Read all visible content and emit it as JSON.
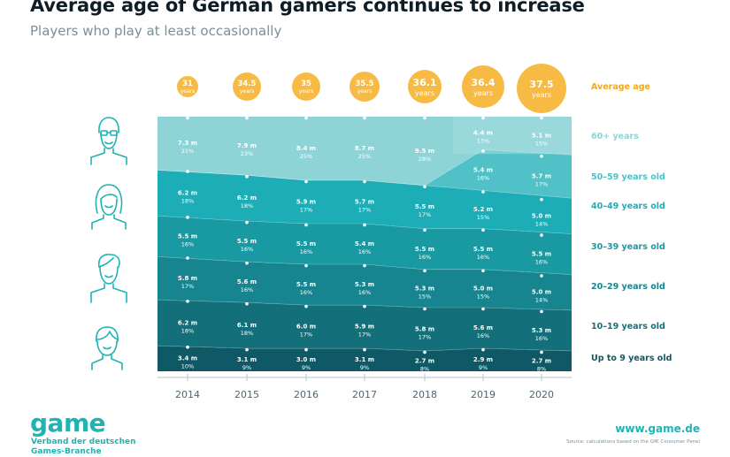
{
  "header": {
    "title": "Average age of German gamers continues to increase",
    "subtitle": "Players who play at least occasionally"
  },
  "footer": {
    "logo_text": "game",
    "logo_subtitle": "Verband der deutschen Games-Branche",
    "website": "www.game.de",
    "source": "Source: calculations based on the GfK Consumer Panel"
  },
  "icons": [
    {
      "name": "senior-person-icon",
      "group": "60+"
    },
    {
      "name": "woman-person-icon",
      "group": "40-59"
    },
    {
      "name": "man-person-icon",
      "group": "20-39"
    },
    {
      "name": "child-person-icon",
      "group": "under 20"
    }
  ],
  "colors": {
    "bubble": "#f7bb45",
    "accent": "#1fb3b3",
    "avg_label": "#f2a81e",
    "bands": [
      "#0f5865",
      "#13707b",
      "#16858f",
      "#199aa3",
      "#1cadb6",
      "#4fc1c7",
      "#8ed4d7"
    ],
    "labels": [
      "#0f5865",
      "#13707b",
      "#16858f",
      "#199aa3",
      "#1cadb6",
      "#4fc1c7",
      "#8ed4d7"
    ]
  },
  "chart_data": {
    "type": "area",
    "title": "Average age of German gamers continues to increase",
    "subtitle": "Players who play at least occasionally",
    "years": [
      "2014",
      "2015",
      "2016",
      "2017",
      "2018",
      "2019",
      "2020"
    ],
    "average_age": {
      "label": "Average age",
      "values": [
        "31",
        "34.5",
        "35",
        "35.5",
        "36.1",
        "36.4",
        "37.5"
      ],
      "unit": "years"
    },
    "series": [
      {
        "name": "Up to 9 years old",
        "millions": [
          "3.4",
          "3.1",
          "3.0",
          "3.1",
          "2.7",
          "2.9",
          "2.7"
        ],
        "shares": [
          "10",
          "9",
          "9",
          "9",
          "8",
          "9",
          "8"
        ]
      },
      {
        "name": "10–19 years old",
        "millions": [
          "6.2",
          "6.1",
          "6.0",
          "5.9",
          "5.8",
          "5.6",
          "5.3"
        ],
        "shares": [
          "18",
          "18",
          "17",
          "17",
          "17",
          "16",
          "16"
        ]
      },
      {
        "name": "20–29 years old",
        "millions": [
          "5.8",
          "5.6",
          "5.5",
          "5.3",
          "5.3",
          "5.0",
          "5.0"
        ],
        "shares": [
          "17",
          "16",
          "16",
          "16",
          "15",
          "15",
          "14"
        ]
      },
      {
        "name": "30–39 years old",
        "millions": [
          "5.5",
          "5.5",
          "5.5",
          "5.4",
          "5.5",
          "5.5",
          "5.5"
        ],
        "shares": [
          "16",
          "16",
          "16",
          "16",
          "16",
          "16",
          "16"
        ]
      },
      {
        "name": "40–49 years old",
        "millions": [
          "6.2",
          "6.2",
          "5.9",
          "5.7",
          "5.5",
          "5.2",
          "5.0"
        ],
        "shares": [
          "18",
          "18",
          "17",
          "17",
          "17",
          "15",
          "14"
        ]
      },
      {
        "name": "50–59 years old",
        "millions": [
          "",
          "",
          "",
          "",
          "",
          "5.4",
          "5.7"
        ],
        "shares": [
          "",
          "",
          "",
          "",
          "",
          "16",
          "17"
        ]
      },
      {
        "name": "60+ years",
        "millions": [
          "7.3",
          "7.9",
          "8.4",
          "8.7",
          "9.5",
          "4.4",
          "5.1"
        ],
        "shares": [
          "21",
          "23",
          "25",
          "25",
          "28",
          "13",
          "15"
        ]
      }
    ],
    "unit_millions": "m",
    "unit_share": "%",
    "y_range": [
      0,
      100
    ]
  }
}
